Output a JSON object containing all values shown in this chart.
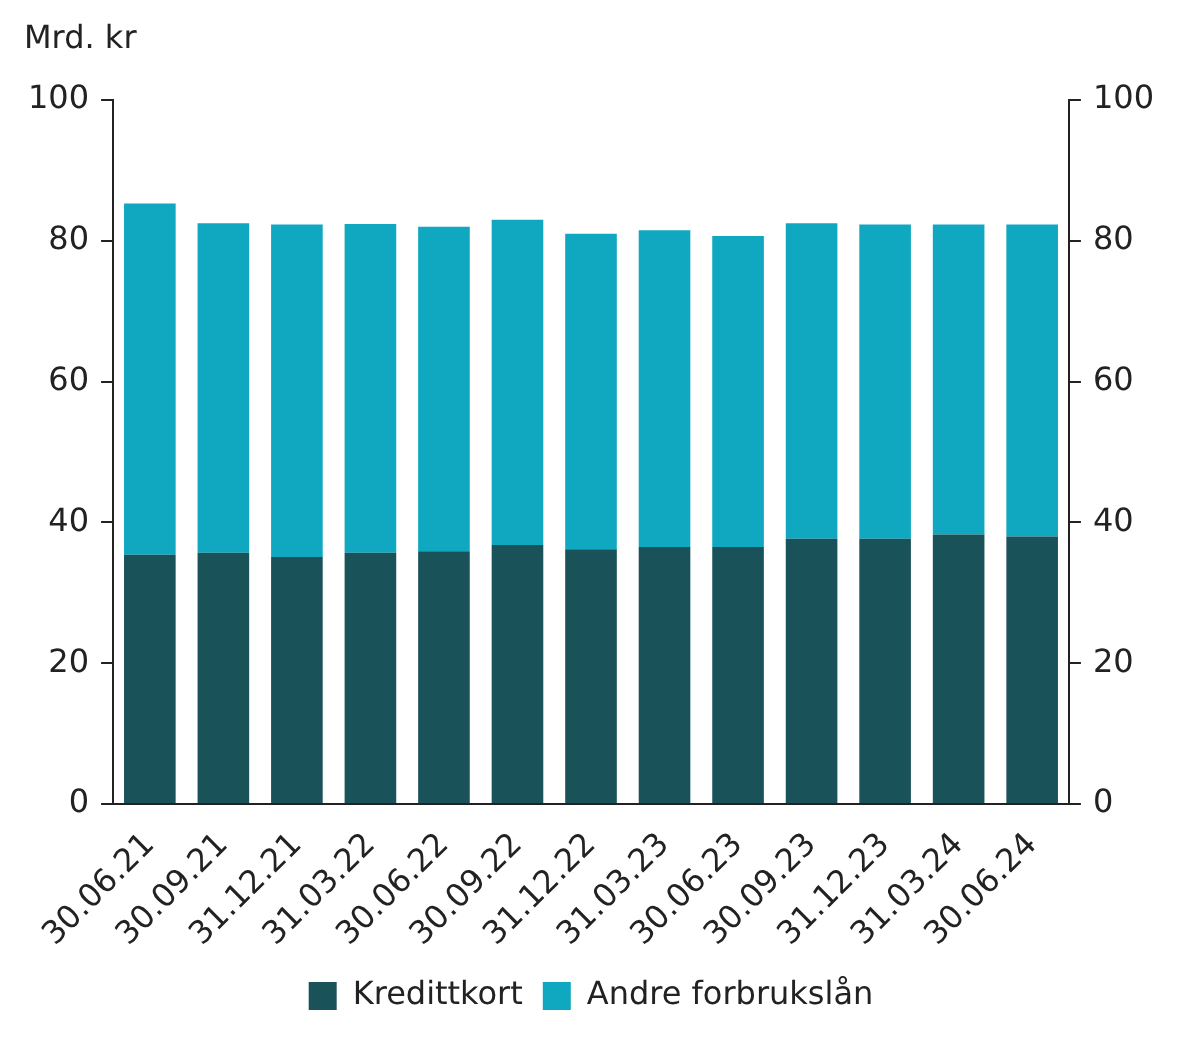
{
  "chart_data": {
    "type": "bar",
    "stacked": true,
    "ylabel": "Mrd. kr",
    "categories": [
      "30.06.21",
      "30.09.21",
      "31.12.21",
      "31.03.22",
      "30.06.22",
      "30.09.22",
      "31.12.22",
      "31.03.23",
      "30.06.23",
      "30.09.23",
      "31.12.23",
      "31.03.24",
      "30.06.24"
    ],
    "series": [
      {
        "name": "Kredittkort",
        "color": "#1a525a",
        "values": [
          35.4,
          35.7,
          35.1,
          35.7,
          35.9,
          36.8,
          36.2,
          36.5,
          36.5,
          37.7,
          37.7,
          38.3,
          38.0
        ]
      },
      {
        "name": "Andre forbrukslån",
        "color": "#0fa8c0",
        "values": [
          49.9,
          46.8,
          47.2,
          46.7,
          46.1,
          46.2,
          44.8,
          45.0,
          44.2,
          44.8,
          44.6,
          44.0,
          44.3
        ]
      }
    ],
    "ylim": [
      0,
      100
    ],
    "yticks": [
      0,
      20,
      40,
      60,
      80,
      100
    ],
    "y2lim": [
      0,
      100
    ],
    "y2ticks": [
      0,
      20,
      40,
      60,
      80,
      100
    ],
    "legend": "bottom"
  }
}
